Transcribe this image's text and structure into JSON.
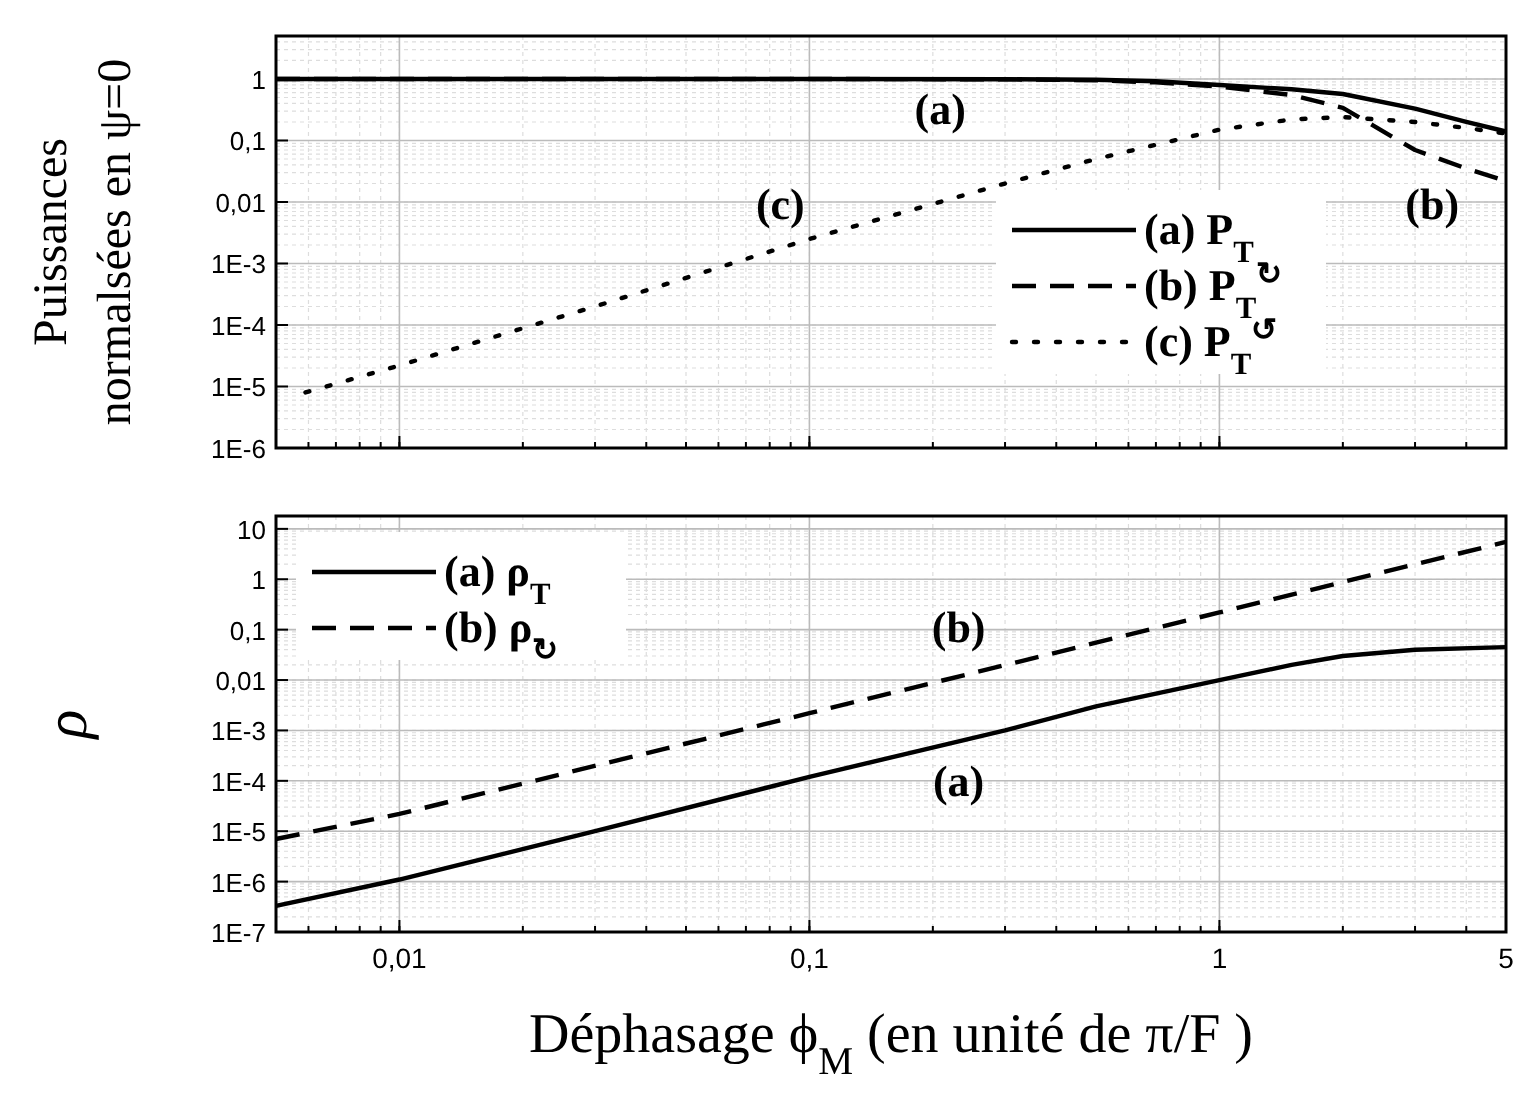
{
  "chart_data": [
    {
      "type": "line",
      "ylabel": "Puissances\nnormalsées en ψ=0",
      "log": "xy",
      "grid": true,
      "legend": "right",
      "tick_labels": "y",
      "xlim": [
        0.005,
        5
      ],
      "xticks": [
        {
          "value": 0.01,
          "label": null
        },
        {
          "value": 0.1,
          "label": null
        },
        {
          "value": 1,
          "label": null
        },
        {
          "value": 5,
          "label": null
        }
      ],
      "ylim": [
        1e-06,
        5
      ],
      "yticks": [
        {
          "value": 1e-06,
          "label": "1E-6"
        },
        {
          "value": 1e-05,
          "label": "1E-5"
        },
        {
          "value": 0.0001,
          "label": "1E-4"
        },
        {
          "value": 0.001,
          "label": "1E-3"
        },
        {
          "value": 0.01,
          "label": "0,01"
        },
        {
          "value": 0.1,
          "label": "0,1"
        },
        {
          "value": 1,
          "label": "1"
        }
      ],
      "series": [
        {
          "name": "(a) P$_{T}$",
          "color": "#000000",
          "line_style": "solid",
          "x": [
            0.005,
            0.01,
            0.1,
            0.3,
            0.5,
            0.7,
            1,
            1.5,
            2,
            3,
            4,
            5
          ],
          "values": [
            1,
            1,
            1,
            0.99,
            0.97,
            0.92,
            0.8,
            0.68,
            0.57,
            0.33,
            0.2,
            0.14
          ]
        },
        {
          "name": "(b) P$_{T}$$^{↻}$",
          "color": "#000000",
          "line_style": "dashed",
          "x": [
            0.005,
            0.01,
            0.1,
            0.3,
            0.5,
            0.7,
            1,
            1.5,
            2,
            3,
            4,
            5
          ],
          "values": [
            1,
            1,
            1,
            0.99,
            0.95,
            0.88,
            0.75,
            0.55,
            0.34,
            0.07,
            0.035,
            0.022
          ]
        },
        {
          "name": "(c) P$_{T}$$^{↺}$",
          "color": "#000000",
          "line_style": "dotted",
          "x": [
            0.0059,
            0.01,
            0.03,
            0.1,
            0.3,
            0.5,
            1,
            1.5,
            2,
            3,
            4,
            5
          ],
          "values": [
            8e-06,
            2.2e-05,
            0.0002,
            0.0025,
            0.02,
            0.05,
            0.15,
            0.22,
            0.24,
            0.2,
            0.16,
            0.13
          ]
        }
      ],
      "annotations": [
        "(a)",
        "(c)",
        "(b)"
      ]
    },
    {
      "type": "line",
      "xlabel": "Déphasage ϕ$_{M}$  (en unité de π/F )",
      "ylabel": "ρ",
      "log": "xy",
      "grid": true,
      "legend": "top left",
      "xlim": [
        0.005,
        5
      ],
      "xticks": [
        {
          "value": 0.01,
          "label": "0,01"
        },
        {
          "value": 0.1,
          "label": "0,1"
        },
        {
          "value": 1,
          "label": "1"
        },
        {
          "value": 5,
          "label": "5"
        }
      ],
      "ylim": [
        1e-07,
        18
      ],
      "yticks": [
        {
          "value": 1e-07,
          "label": "1E-7"
        },
        {
          "value": 1e-06,
          "label": "1E-6"
        },
        {
          "value": 1e-05,
          "label": "1E-5"
        },
        {
          "value": 0.0001,
          "label": "1E-4"
        },
        {
          "value": 0.001,
          "label": "1E-3"
        },
        {
          "value": 0.01,
          "label": "0,01"
        },
        {
          "value": 0.1,
          "label": "0,1"
        },
        {
          "value": 1,
          "label": "1"
        },
        {
          "value": 10,
          "label": "10"
        }
      ],
      "series": [
        {
          "name": "(a) ρ$_{T}$",
          "color": "#000000",
          "line_style": "solid",
          "x": [
            0.005,
            0.01,
            0.03,
            0.1,
            0.3,
            0.5,
            1,
            1.5,
            2,
            3,
            5
          ],
          "values": [
            3.3e-07,
            1.1e-06,
            1e-05,
            0.00012,
            0.001,
            0.003,
            0.01,
            0.02,
            0.03,
            0.04,
            0.045
          ]
        },
        {
          "name": "(b) ρ$_{↻}$",
          "color": "#000000",
          "line_style": "dashed",
          "x": [
            0.005,
            0.01,
            0.1,
            1,
            5
          ],
          "values": [
            7e-06,
            2.2e-05,
            0.0022,
            0.22,
            5.5
          ]
        }
      ],
      "annotations": [
        "(b)",
        "(a)"
      ]
    }
  ]
}
